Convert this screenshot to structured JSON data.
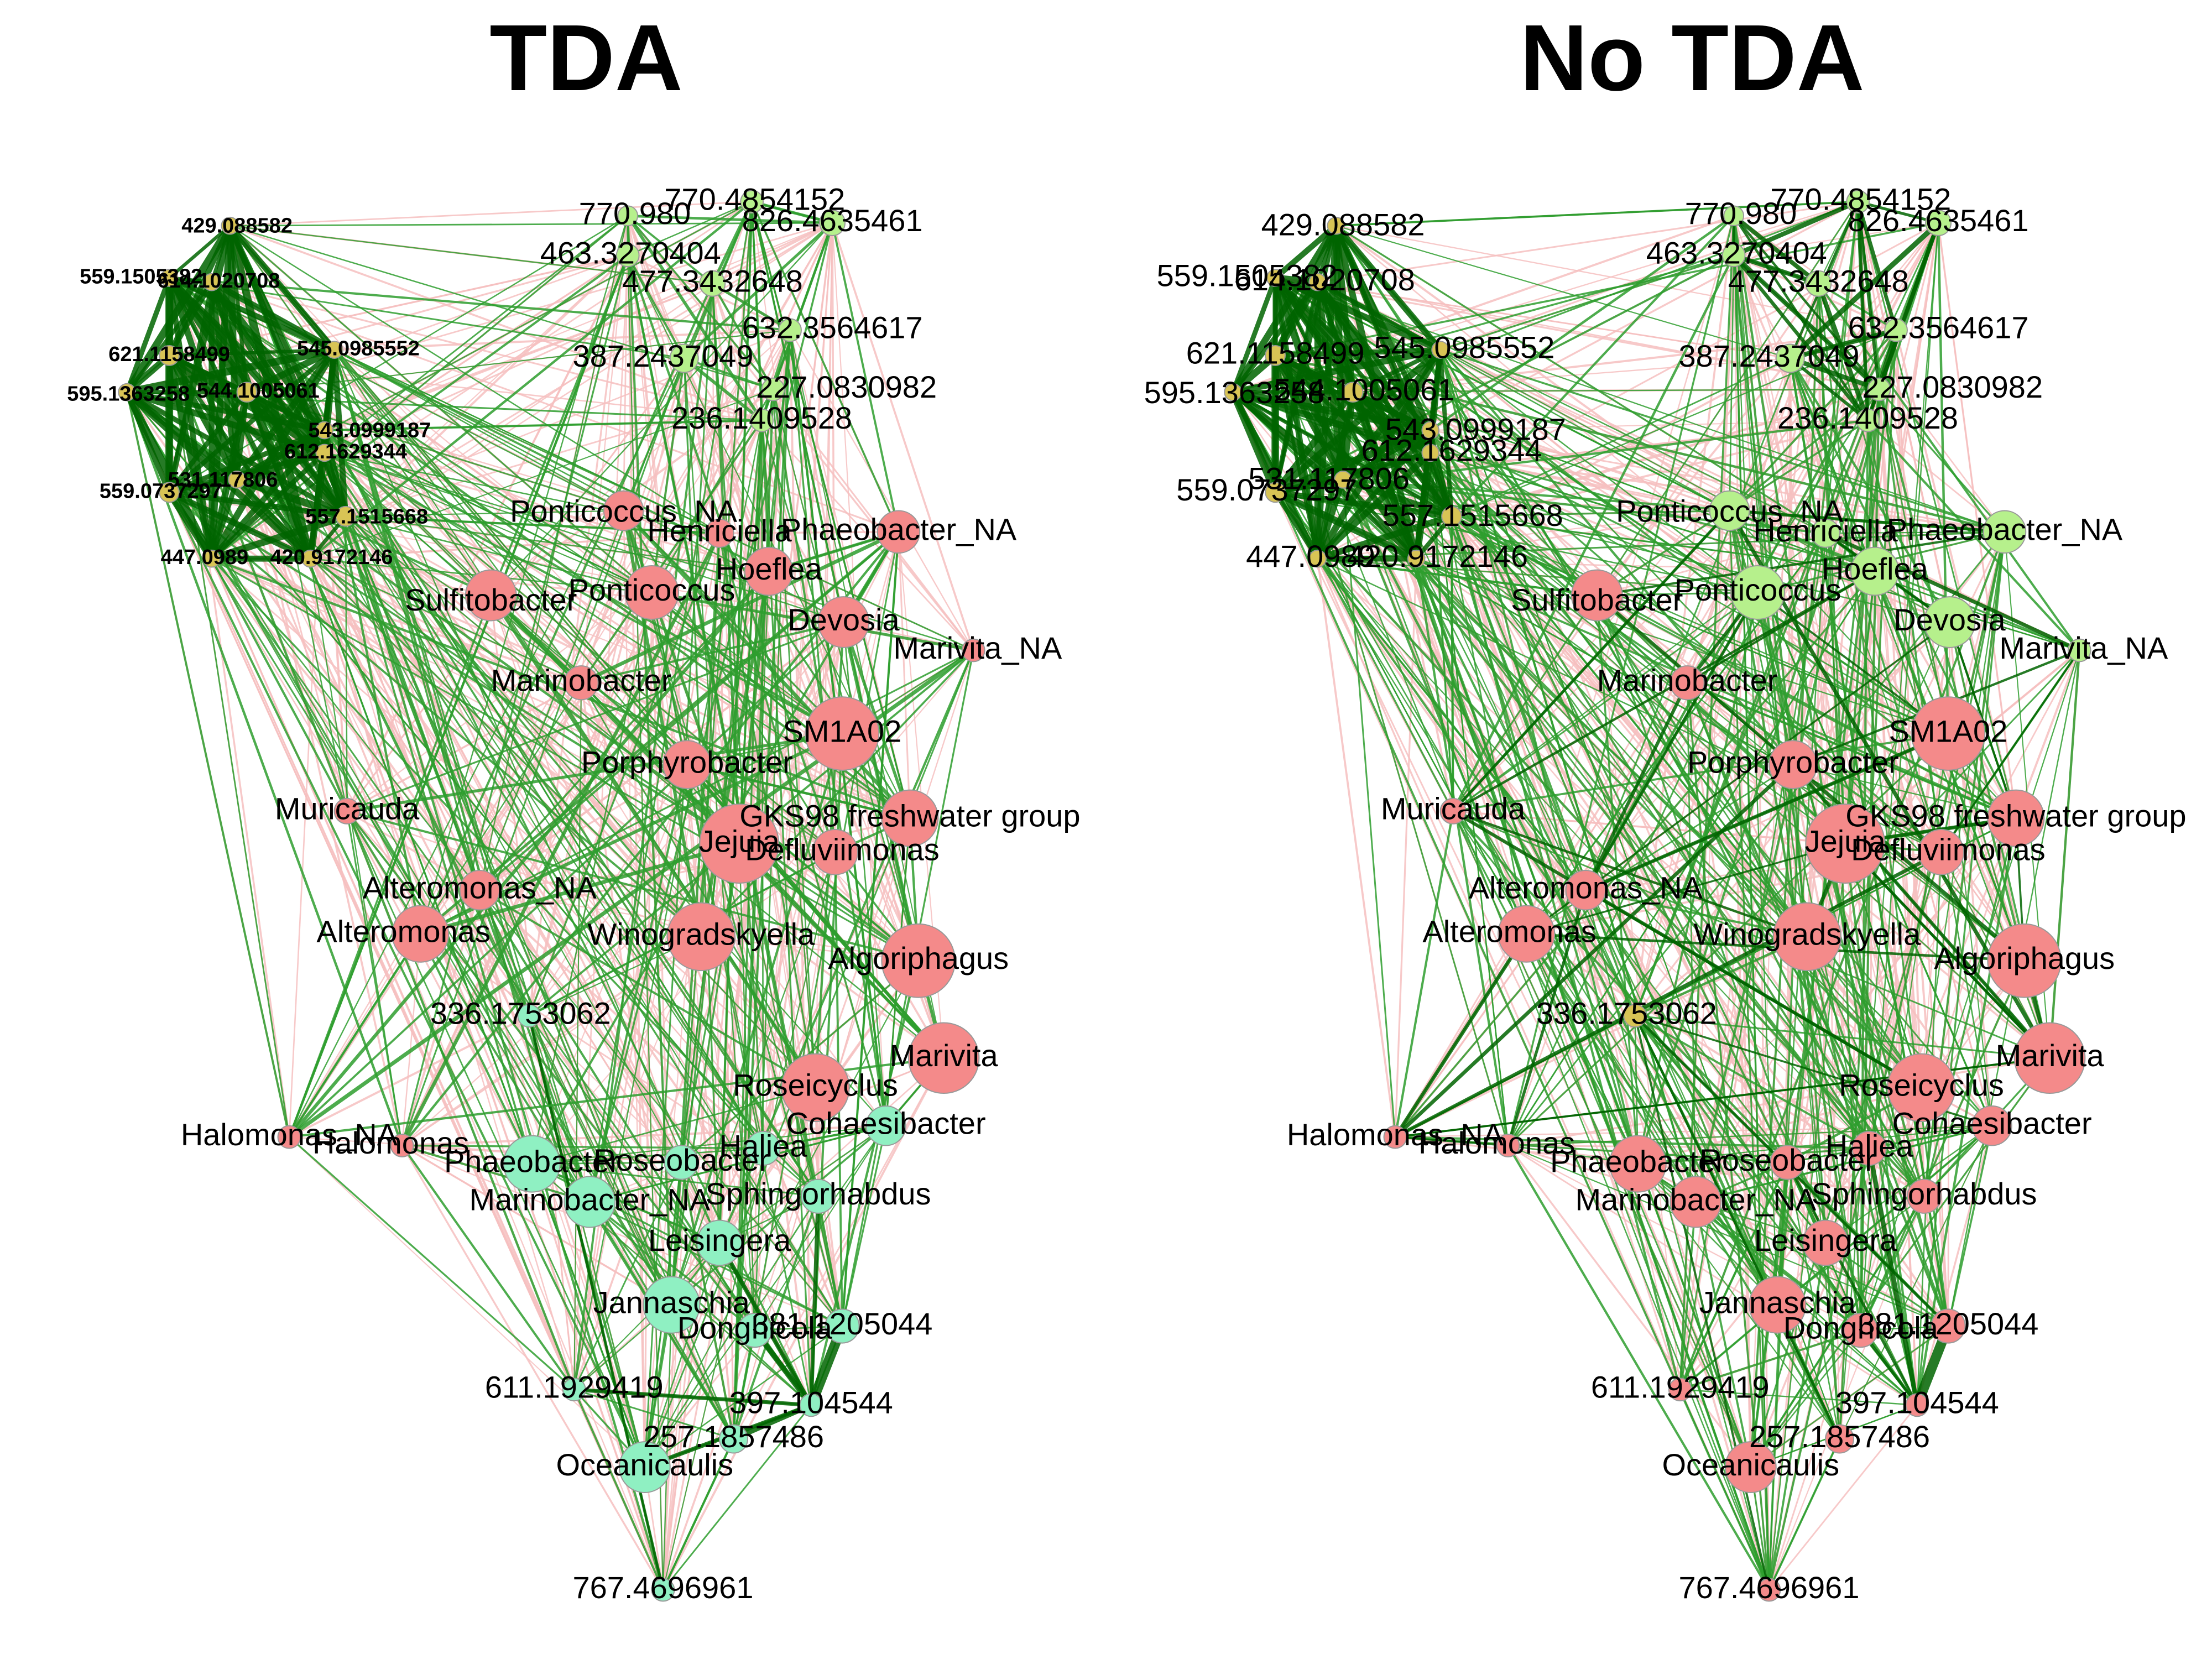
{
  "panels": [
    {
      "title": "TDA",
      "colors": {
        "metabolite": "#d8c455",
        "taxon": "#f48a8a",
        "tda_module_taxon": "#b6f08c",
        "tda_module_metabolite": "#8ff0c2",
        "positive_edge": "#2e9d2e",
        "strong_edge": "#006400",
        "negative_edge": "#f6c0c0"
      }
    },
    {
      "title": "No TDA",
      "colors": {
        "metabolite": "#d8c455",
        "taxon": "#f48a8a",
        "tda_module_taxon": "#b6f08c",
        "positive_edge": "#2e9d2e",
        "strong_edge": "#006400",
        "negative_edge": "#f6c0c0"
      }
    }
  ],
  "node_labels": [
    "429.088582",
    "559.1505382",
    "614.1020708",
    "621.1158499",
    "545.0985552",
    "595.1363258",
    "544.1005061",
    "543.0999187",
    "612.1629344",
    "559.0737297",
    "531.117806",
    "557.1515668",
    "447.0989",
    "420.9172146",
    "770.980",
    "770.4854152",
    "826.4635461",
    "463.3270404",
    "477.3432648",
    "632.3564617",
    "387.2437049",
    "227.0830982",
    "236.1409528",
    "Ponticoccus_NA",
    "Henriciella",
    "Phaeobacter_NA",
    "Hoeflea",
    "Sulfitobacter",
    "Ponticoccus",
    "Devosia",
    "Marivita_NA",
    "Marinobacter",
    "SM1A02",
    "Porphyrobacter",
    "Muricauda",
    "GKS98 freshwater group",
    "Jejuia",
    "Defluviimonas",
    "Alteromonas_NA",
    "Alteromonas",
    "Winogradskyella",
    "Algoriphagus",
    "336.1753062",
    "Marivita",
    "Roseicyclus",
    "Halomonas_NA",
    "Halomonas",
    "Cohaesibacter",
    "Phaeobacter",
    "Roseobacter",
    "Haliea",
    "Marinobacter_NA",
    "Sphingorhabdus",
    "Leisingera",
    "Jannaschia",
    "Donghicola",
    "381.1205044",
    "611.1929419",
    "397.104544",
    "257.1857486",
    "Oceanicaulis",
    "767.4696961"
  ]
}
